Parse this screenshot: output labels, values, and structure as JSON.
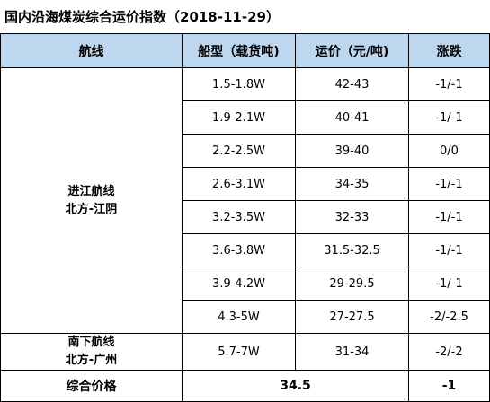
{
  "title": "国内沿海煤炭综合运价指数（2018-11-29）",
  "headers": [
    "航线",
    "船型（载货吨)",
    "运价（元/吨)",
    "涨跌"
  ],
  "groups": [
    {
      "route_line1": "进江航线",
      "route_line2": "北方-江阴",
      "rows": [
        {
          "ship": "1.5-1.8W",
          "price": "42-43",
          "change": "-1/-1"
        },
        {
          "ship": "1.9-2.1W",
          "price": "40-41",
          "change": "-1/-1"
        },
        {
          "ship": "2.2-2.5W",
          "price": "39-40",
          "change": "0/0"
        },
        {
          "ship": "2.6-3.1W",
          "price": "34-35",
          "change": "-1/-1"
        },
        {
          "ship": "3.2-3.5W",
          "price": "32-33",
          "change": "-1/-1"
        },
        {
          "ship": "3.6-3.8W",
          "price": "31.5-32.5",
          "change": "-1/-1"
        },
        {
          "ship": "3.9-4.2W",
          "price": "29-29.5",
          "change": "-1/-1"
        },
        {
          "ship": "4.3-5W",
          "price": "27-27.5",
          "change": "-2/-2.5"
        }
      ]
    },
    {
      "route_line1": "南下航线",
      "route_line2": "北方-广州",
      "rows": [
        {
          "ship": "5.7-7W",
          "price": "31-34",
          "change": "-2/-2"
        }
      ]
    }
  ],
  "summary": {
    "label": "综合价格",
    "value": "34.5",
    "change": "-1"
  },
  "colors": {
    "header_bg": "#bdd7ee"
  }
}
